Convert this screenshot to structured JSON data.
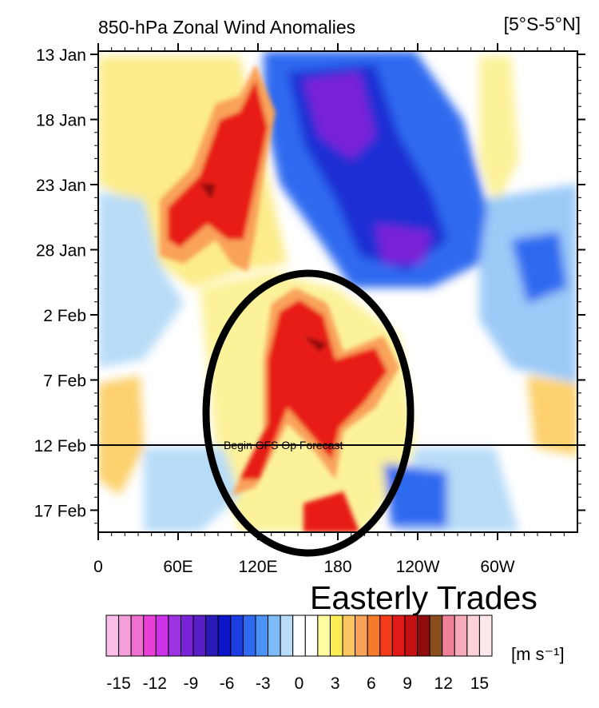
{
  "chart_data": {
    "type": "heatmap",
    "title": "850-hPa Zonal Wind Anomalies",
    "region": "[5°S-5°N]",
    "y_ticks": [
      "13 Jan",
      "18 Jan",
      "23 Jan",
      "28 Jan",
      "2 Feb",
      "7 Feb",
      "12 Feb",
      "17 Feb"
    ],
    "x_ticks": [
      "0",
      "60E",
      "120E",
      "180",
      "120W",
      "60W"
    ],
    "x_range_deg_east": [
      0,
      360
    ],
    "forecast_line_date": "12 Feb",
    "forecast_label": "Begin GFS Op Forecast",
    "annotation": "Easterly Trades",
    "colorbar": {
      "units": "[m s⁻¹]",
      "ticks": [
        "-15",
        "-12",
        "-9",
        "-6",
        "-3",
        "0",
        "3",
        "6",
        "9",
        "12",
        "15"
      ],
      "colors": [
        "#f9bfe8",
        "#f49fdb",
        "#f070cf",
        "#e93fd8",
        "#cc33e8",
        "#9d33e0",
        "#7a22d8",
        "#5a1ec8",
        "#2a1ab8",
        "#0c16c8",
        "#1a3de4",
        "#2f6af0",
        "#4a92f5",
        "#7fbcf7",
        "#b8dcf8",
        "#ffffff",
        "#ffffff",
        "#fffda0",
        "#fcec58",
        "#fcc762",
        "#f9a25a",
        "#f47b2a",
        "#f43c1c",
        "#e01a18",
        "#c41010",
        "#8e0c0c",
        "#8a4e1e",
        "#f08098",
        "#f7aab8",
        "#fad2d8",
        "#fde8ec"
      ]
    },
    "grid": false
  }
}
